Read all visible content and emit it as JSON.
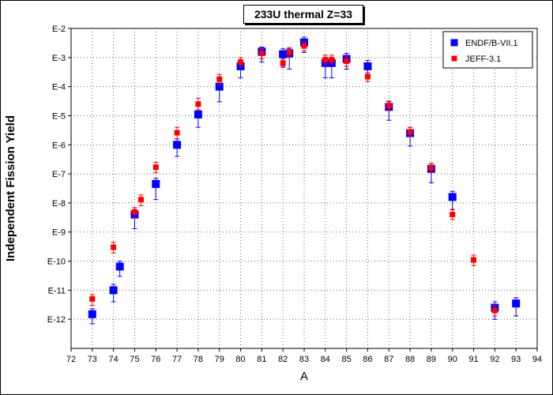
{
  "chart_data": {
    "type": "scatter",
    "title": "233U thermal Z=33",
    "xlabel": "A",
    "ylabel": "Independent Fission Yield",
    "xlim": [
      72,
      94
    ],
    "xticks": [
      "72",
      "73",
      "74",
      "75",
      "76",
      "77",
      "78",
      "79",
      "80",
      "81",
      "82",
      "83",
      "84",
      "85",
      "86",
      "87",
      "88",
      "89",
      "90",
      "91",
      "92",
      "93",
      "94"
    ],
    "yscale": "log",
    "ylim": [
      1e-13,
      0.01
    ],
    "yticks": [
      {
        "label": "E-2",
        "value": 0.01
      },
      {
        "label": "E-3",
        "value": 0.001
      },
      {
        "label": "E-4",
        "value": 0.0001
      },
      {
        "label": "E-5",
        "value": 1e-05
      },
      {
        "label": "E-6",
        "value": 1e-06
      },
      {
        "label": "E-7",
        "value": 1e-07
      },
      {
        "label": "E-8",
        "value": 1e-08
      },
      {
        "label": "E-9",
        "value": 1e-09
      },
      {
        "label": "E-10",
        "value": 1e-10
      },
      {
        "label": "E-11",
        "value": 1e-11
      },
      {
        "label": "E-12",
        "value": 1e-12
      }
    ],
    "grid": true,
    "legend_position": "top-right",
    "series": [
      {
        "name": "ENDF/B-VII.1",
        "color": "#0000ff",
        "marker": "square-large",
        "points": [
          {
            "x": 73,
            "y": 1.5e-12,
            "ylo": 7e-13,
            "yhi": 2.3e-12
          },
          {
            "x": 74,
            "y": 1e-11,
            "ylo": 4e-12,
            "yhi": 1.6e-11
          },
          {
            "x": 74.3,
            "y": 6.5e-11,
            "ylo": 3e-11,
            "yhi": 1e-10
          },
          {
            "x": 75,
            "y": 4e-09,
            "ylo": 1.3e-09,
            "yhi": 6e-09
          },
          {
            "x": 76,
            "y": 4.5e-08,
            "ylo": 1.3e-08,
            "yhi": 7e-08
          },
          {
            "x": 77,
            "y": 1e-06,
            "ylo": 4e-07,
            "yhi": 1.6e-06
          },
          {
            "x": 78,
            "y": 1.1e-05,
            "ylo": 4e-06,
            "yhi": 1.6e-05
          },
          {
            "x": 79,
            "y": 0.0001,
            "ylo": 3e-05,
            "yhi": 0.00016
          },
          {
            "x": 80,
            "y": 0.0005,
            "ylo": 0.0002,
            "yhi": 0.0007
          },
          {
            "x": 81,
            "y": 0.0016,
            "ylo": 0.0007,
            "yhi": 0.0023
          },
          {
            "x": 82,
            "y": 0.0013,
            "ylo": 0.0005,
            "yhi": 0.002
          },
          {
            "x": 82.3,
            "y": 0.0014,
            "ylo": 0.0004,
            "yhi": 0.002
          },
          {
            "x": 83,
            "y": 0.0033,
            "ylo": 0.0015,
            "yhi": 0.005
          },
          {
            "x": 84,
            "y": 0.00065,
            "ylo": 0.0002,
            "yhi": 0.001
          },
          {
            "x": 84.3,
            "y": 0.00065,
            "ylo": 0.0002,
            "yhi": 0.001
          },
          {
            "x": 85,
            "y": 0.0009,
            "ylo": 0.0004,
            "yhi": 0.0014
          },
          {
            "x": 86,
            "y": 0.0005,
            "ylo": 0.0003,
            "yhi": 0.0008
          },
          {
            "x": 87,
            "y": 2e-05,
            "ylo": 7e-06,
            "yhi": 3e-05
          },
          {
            "x": 88,
            "y": 2.5e-06,
            "ylo": 9e-07,
            "yhi": 4e-06
          },
          {
            "x": 89,
            "y": 1.5e-07,
            "ylo": 5e-08,
            "yhi": 2.3e-07
          },
          {
            "x": 90,
            "y": 1.6e-08,
            "ylo": 6e-09,
            "yhi": 2.5e-08
          },
          {
            "x": 92,
            "y": 2.5e-12,
            "ylo": 1e-12,
            "yhi": 4e-12
          },
          {
            "x": 93,
            "y": 3.5e-12,
            "ylo": 1.3e-12,
            "yhi": 5.5e-12
          }
        ]
      },
      {
        "name": "JEFF-3.1",
        "color": "#ff0000",
        "marker": "square-small",
        "points": [
          {
            "x": 73,
            "y": 5e-12,
            "ylo": 3e-12,
            "yhi": 7e-12
          },
          {
            "x": 74,
            "y": 3e-10,
            "ylo": 1.9e-10,
            "yhi": 4.5e-10
          },
          {
            "x": 75,
            "y": 5e-09,
            "ylo": 3e-09,
            "yhi": 7e-09
          },
          {
            "x": 75.3,
            "y": 1.3e-08,
            "ylo": 8e-09,
            "yhi": 1.9e-08
          },
          {
            "x": 76,
            "y": 1.7e-07,
            "ylo": 1.1e-07,
            "yhi": 2.5e-07
          },
          {
            "x": 77,
            "y": 2.6e-06,
            "ylo": 1.6e-06,
            "yhi": 4e-06
          },
          {
            "x": 78,
            "y": 2.5e-05,
            "ylo": 1.6e-05,
            "yhi": 4e-05
          },
          {
            "x": 79,
            "y": 0.00018,
            "ylo": 0.00012,
            "yhi": 0.00026
          },
          {
            "x": 80,
            "y": 0.0007,
            "ylo": 0.0005,
            "yhi": 0.001
          },
          {
            "x": 81,
            "y": 0.0014,
            "ylo": 0.0009,
            "yhi": 0.002
          },
          {
            "x": 82,
            "y": 0.00065,
            "ylo": 0.00045,
            "yhi": 0.0009
          },
          {
            "x": 82.3,
            "y": 0.0015,
            "ylo": 0.001,
            "yhi": 0.0022
          },
          {
            "x": 83,
            "y": 0.0025,
            "ylo": 0.0017,
            "yhi": 0.0036
          },
          {
            "x": 84,
            "y": 0.00085,
            "ylo": 0.0006,
            "yhi": 0.0012
          },
          {
            "x": 84.3,
            "y": 0.00085,
            "ylo": 0.0006,
            "yhi": 0.0012
          },
          {
            "x": 85,
            "y": 0.00075,
            "ylo": 0.0005,
            "yhi": 0.0011
          },
          {
            "x": 86,
            "y": 0.00022,
            "ylo": 0.00015,
            "yhi": 0.0003
          },
          {
            "x": 87,
            "y": 2.2e-05,
            "ylo": 1.5e-05,
            "yhi": 3.2e-05
          },
          {
            "x": 88,
            "y": 2.8e-06,
            "ylo": 1.9e-06,
            "yhi": 4e-06
          },
          {
            "x": 89,
            "y": 1.6e-07,
            "ylo": 1.1e-07,
            "yhi": 2.3e-07
          },
          {
            "x": 90,
            "y": 4e-09,
            "ylo": 2.7e-09,
            "yhi": 5.8e-09
          },
          {
            "x": 91,
            "y": 1.1e-10,
            "ylo": 7e-11,
            "yhi": 1.6e-10
          },
          {
            "x": 92,
            "y": 2e-12,
            "ylo": 1.3e-12,
            "yhi": 3e-12
          }
        ]
      }
    ]
  }
}
